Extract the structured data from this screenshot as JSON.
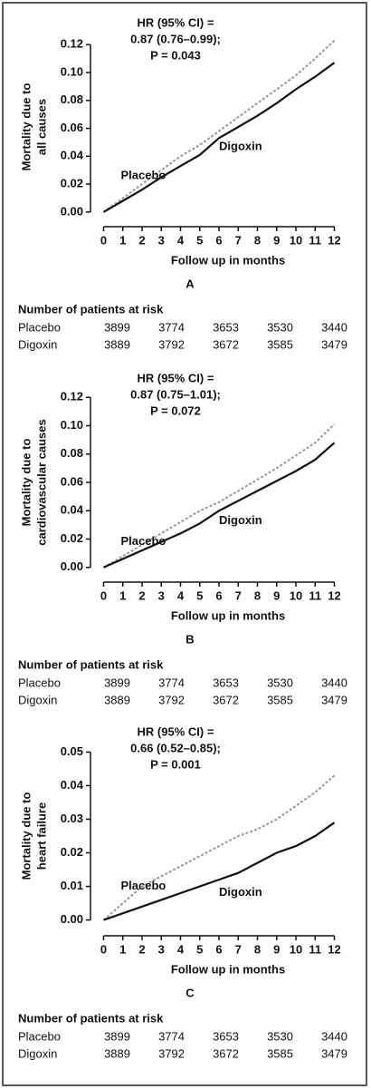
{
  "chart_data": [
    {
      "type": "line",
      "panel": "A",
      "ylabel": [
        "Mortality due to",
        "all causes"
      ],
      "xlabel": "Follow up in months",
      "annotation": [
        "HR (95% CI) =",
        "0.87 (0.76–0.99);",
        "P = 0.043"
      ],
      "x": [
        0,
        1,
        2,
        3,
        4,
        5,
        6,
        7,
        8,
        9,
        10,
        11,
        12
      ],
      "series": [
        {
          "name": "Placebo",
          "color": "#999999",
          "dashed": true,
          "values": [
            0,
            0.01,
            0.02,
            0.03,
            0.04,
            0.048,
            0.058,
            0.068,
            0.078,
            0.088,
            0.098,
            0.11,
            0.123
          ]
        },
        {
          "name": "Digoxin",
          "color": "#111111",
          "dashed": false,
          "values": [
            0,
            0.008,
            0.016,
            0.025,
            0.033,
            0.041,
            0.053,
            0.061,
            0.069,
            0.078,
            0.088,
            0.097,
            0.107
          ]
        }
      ],
      "xlim": [
        -0.4,
        12.4
      ],
      "xticks": [
        0,
        1,
        2,
        3,
        4,
        5,
        6,
        7,
        8,
        9,
        10,
        11,
        12
      ],
      "ylim": [
        -0.004,
        0.126
      ],
      "yticks": [
        {
          "value": 0,
          "label": "0.00"
        },
        {
          "value": 0.02,
          "label": "0.02"
        },
        {
          "value": 0.04,
          "label": "0.04"
        },
        {
          "value": 0.06,
          "label": "0.06"
        },
        {
          "value": 0.08,
          "label": "0.08"
        },
        {
          "value": 0.1,
          "label": "0.10"
        },
        {
          "value": 0.12,
          "label": "0.12"
        }
      ],
      "risk_table": {
        "title": "Number of patients at risk",
        "rows": [
          {
            "name": "Placebo",
            "values": [
              3899,
              3774,
              3653,
              3530,
              3440
            ]
          },
          {
            "name": "Digoxin",
            "values": [
              3889,
              3792,
              3672,
              3585,
              3479
            ]
          }
        ]
      }
    },
    {
      "type": "line",
      "panel": "B",
      "ylabel": [
        "Mortality due to",
        "cardiovascular causes"
      ],
      "xlabel": "Follow up in months",
      "annotation": [
        "HR (95% CI) =",
        "0.87 (0.75–1.01);",
        "P = 0.072"
      ],
      "x": [
        0,
        1,
        2,
        3,
        4,
        5,
        6,
        7,
        8,
        9,
        10,
        11,
        12
      ],
      "series": [
        {
          "name": "Placebo",
          "color": "#999999",
          "dashed": true,
          "values": [
            0,
            0.008,
            0.016,
            0.024,
            0.032,
            0.04,
            0.046,
            0.054,
            0.062,
            0.07,
            0.079,
            0.088,
            0.101
          ]
        },
        {
          "name": "Digoxin",
          "color": "#111111",
          "dashed": false,
          "values": [
            0,
            0.006,
            0.012,
            0.018,
            0.024,
            0.031,
            0.04,
            0.047,
            0.054,
            0.061,
            0.068,
            0.076,
            0.088
          ]
        }
      ],
      "xlim": [
        -0.4,
        12.4
      ],
      "xticks": [
        0,
        1,
        2,
        3,
        4,
        5,
        6,
        7,
        8,
        9,
        10,
        11,
        12
      ],
      "ylim": [
        -0.004,
        0.124
      ],
      "yticks": [
        {
          "value": 0,
          "label": "0.00"
        },
        {
          "value": 0.02,
          "label": "0.02"
        },
        {
          "value": 0.04,
          "label": "0.04"
        },
        {
          "value": 0.06,
          "label": "0.06"
        },
        {
          "value": 0.08,
          "label": "0.08"
        },
        {
          "value": 0.1,
          "label": "0.10"
        },
        {
          "value": 0.12,
          "label": "0.12"
        }
      ],
      "risk_table": {
        "title": "Number of patients at risk",
        "rows": [
          {
            "name": "Placebo",
            "values": [
              3899,
              3774,
              3653,
              3530,
              3440
            ]
          },
          {
            "name": "Digoxin",
            "values": [
              3889,
              3792,
              3672,
              3585,
              3479
            ]
          }
        ]
      }
    },
    {
      "type": "line",
      "panel": "C",
      "ylabel": [
        "Mortality due to",
        "heart failure"
      ],
      "xlabel": "Follow up in months",
      "annotation": [
        "HR (95% CI) =",
        "0.66 (0.52–0.85);",
        "P = 0.001"
      ],
      "x": [
        0,
        1,
        2,
        3,
        4,
        5,
        6,
        7,
        8,
        9,
        10,
        11,
        12
      ],
      "series": [
        {
          "name": "Placebo",
          "color": "#999999",
          "dashed": true,
          "values": [
            0,
            0.005,
            0.01,
            0.013,
            0.016,
            0.019,
            0.022,
            0.025,
            0.027,
            0.03,
            0.034,
            0.038,
            0.043
          ]
        },
        {
          "name": "Digoxin",
          "color": "#111111",
          "dashed": false,
          "values": [
            0,
            0.002,
            0.004,
            0.006,
            0.008,
            0.01,
            0.012,
            0.014,
            0.017,
            0.02,
            0.022,
            0.025,
            0.029
          ]
        }
      ],
      "xlim": [
        -0.4,
        12.4
      ],
      "xticks": [
        0,
        1,
        2,
        3,
        4,
        5,
        6,
        7,
        8,
        9,
        10,
        11,
        12
      ],
      "ylim": [
        -0.002,
        0.052
      ],
      "yticks": [
        {
          "value": 0,
          "label": "0.00"
        },
        {
          "value": 0.01,
          "label": "0.01"
        },
        {
          "value": 0.02,
          "label": "0.02"
        },
        {
          "value": 0.03,
          "label": "0.03"
        },
        {
          "value": 0.04,
          "label": "0.04"
        },
        {
          "value": 0.05,
          "label": "0.05"
        }
      ],
      "risk_table": {
        "title": "Number of patients at risk",
        "rows": [
          {
            "name": "Placebo",
            "values": [
              3899,
              3774,
              3653,
              3530,
              3440
            ]
          },
          {
            "name": "Digoxin",
            "values": [
              3889,
              3792,
              3672,
              3585,
              3479
            ]
          }
        ]
      }
    }
  ]
}
